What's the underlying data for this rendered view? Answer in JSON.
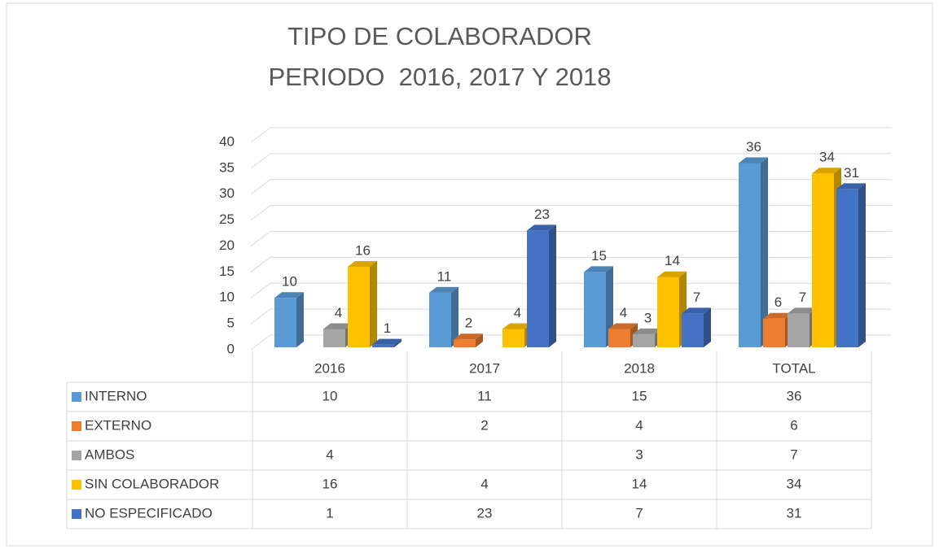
{
  "chart_data": {
    "type": "bar3d",
    "title": "TIPO DE COLABORADOR",
    "subtitle": "PERIODO  2016, 2017 Y 2018",
    "categories": [
      "2016",
      "2017",
      "2018",
      "TOTAL"
    ],
    "series": [
      {
        "name": "INTERNO",
        "color": "#5b9bd5",
        "values": [
          10,
          11,
          15,
          36
        ]
      },
      {
        "name": "EXTERNO",
        "color": "#ed7d31",
        "values": [
          null,
          2,
          4,
          6
        ]
      },
      {
        "name": "AMBOS",
        "color": "#a5a5a5",
        "values": [
          4,
          null,
          3,
          7
        ]
      },
      {
        "name": "SIN COLABORADOR",
        "color": "#ffc000",
        "values": [
          16,
          4,
          14,
          34
        ]
      },
      {
        "name": "NO ESPECIFICADO",
        "color": "#4472c4",
        "values": [
          1,
          23,
          7,
          31
        ]
      }
    ],
    "ylim": [
      0,
      40
    ],
    "yticks": [
      0,
      5,
      10,
      15,
      20,
      25,
      30,
      35,
      40
    ],
    "grid": true
  }
}
